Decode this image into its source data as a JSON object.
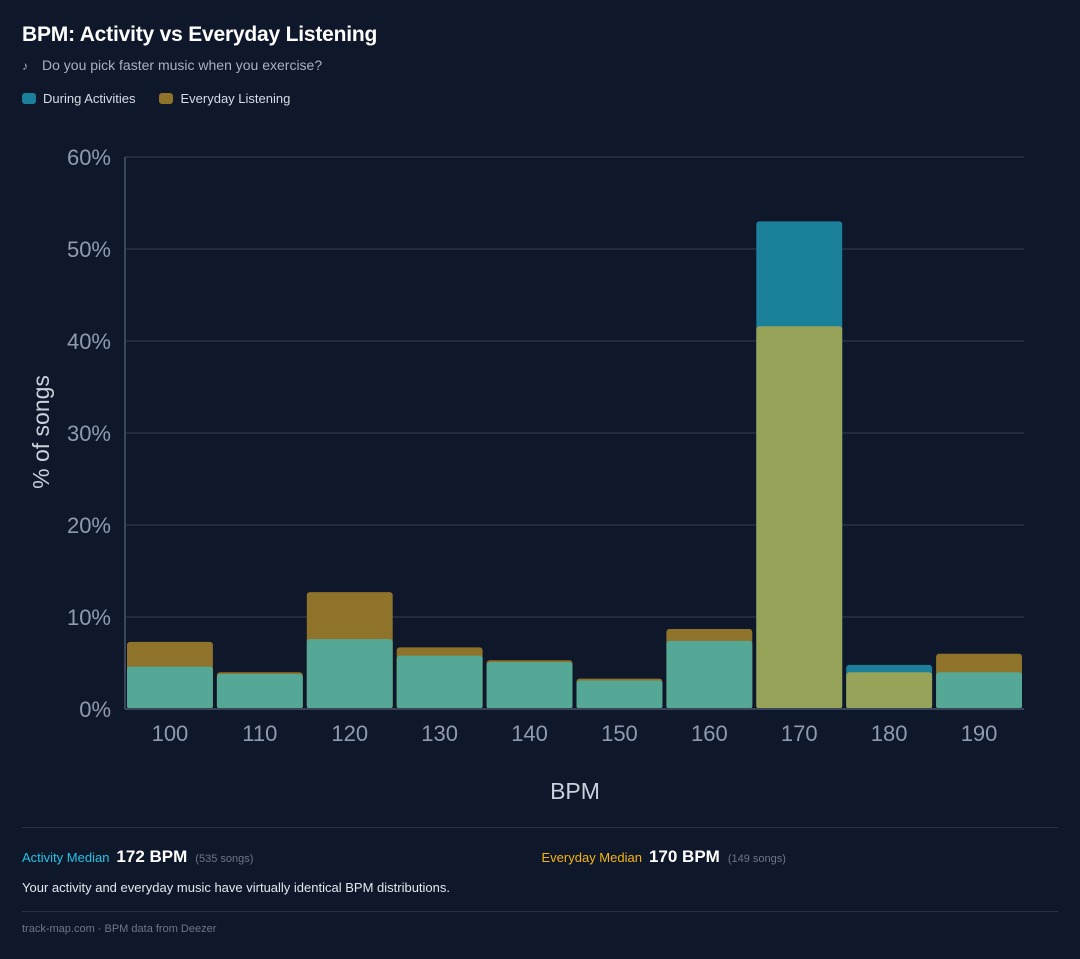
{
  "header": {
    "title": "BPM: Activity vs Everyday Listening",
    "subtitle_icon": "music-note-icon",
    "subtitle": "Do you pick faster music when you exercise?"
  },
  "legend": [
    {
      "label": "During Activities",
      "color": "#1b809a"
    },
    {
      "label": "Everyday Listening",
      "color": "#8f732a"
    }
  ],
  "chart_data": {
    "type": "bar",
    "mode": "overlapping",
    "title": "BPM: Activity vs Everyday Listening",
    "xlabel": "BPM",
    "ylabel": "% of songs",
    "categories": [
      "100",
      "110",
      "120",
      "130",
      "140",
      "150",
      "160",
      "170",
      "180",
      "190"
    ],
    "series": [
      {
        "name": "During Activities",
        "values": [
          4.6,
          3.8,
          7.6,
          5.8,
          5.1,
          3.1,
          7.4,
          53.0,
          4.8,
          4.0
        ]
      },
      {
        "name": "Everyday Listening",
        "values": [
          7.3,
          4.0,
          12.7,
          6.7,
          5.3,
          3.3,
          8.7,
          41.6,
          4.0,
          6.0
        ]
      }
    ],
    "ylim": [
      0,
      60
    ],
    "yticks": [
      "0%",
      "10%",
      "20%",
      "30%",
      "40%",
      "50%",
      "60%"
    ],
    "ytick_values": [
      0,
      10,
      20,
      30,
      40,
      50,
      60
    ],
    "grid": true,
    "legend_position": "top-left",
    "colors": {
      "activity": "#1b809a",
      "everyday": "#8f732a",
      "activity_over_everyday": "#55a895",
      "everyday_over_activity": "#98a35a"
    }
  },
  "stats": {
    "activity": {
      "label": "Activity Median",
      "value": "172 BPM",
      "count": "(535 songs)",
      "color": "#22c3e6"
    },
    "everyday": {
      "label": "Everyday Median",
      "value": "170 BPM",
      "count": "(149 songs)",
      "color": "#f5b50f"
    }
  },
  "summary": "Your activity and everyday music have virtually identical BPM distributions.",
  "footer": "track-map.com · BPM data from Deezer"
}
